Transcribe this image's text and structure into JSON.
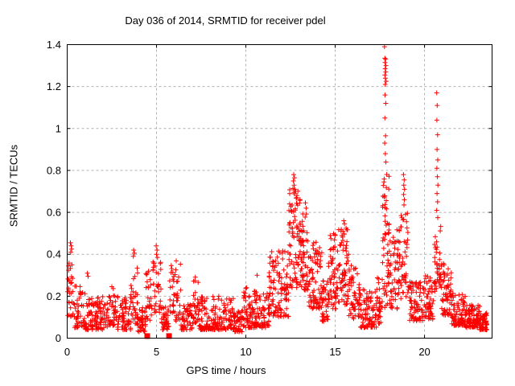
{
  "chart": {
    "title": "Day 036 of 2014, SRMTID for receiver pdel",
    "xlabel": "GPS time / hours",
    "ylabel": "SRMTID / TECUs"
  },
  "chart_data": {
    "type": "scatter",
    "title": "Day 036 of 2014, SRMTID for receiver pdel",
    "xlabel": "GPS time / hours",
    "ylabel": "SRMTID / TECUs",
    "xlim": [
      0,
      23.78
    ],
    "ylim": [
      0,
      1.4
    ],
    "xticks": [
      0,
      5,
      10,
      15,
      20
    ],
    "xtick_labels": [
      "0",
      "5",
      "10",
      "15",
      "20"
    ],
    "yticks": [
      0,
      0.2,
      0.4,
      0.6,
      0.8,
      1,
      1.2,
      1.4
    ],
    "ytick_labels": [
      "0",
      "0.2",
      "0.4",
      "0.6",
      "0.8",
      "1",
      "1.2",
      "1.4"
    ],
    "grid": true,
    "legend": "none",
    "marker": "plus",
    "marker_color": "#ff0000",
    "grid_color": "#b0b0b0",
    "axis_color": "#000000",
    "series_name": "SRMTID",
    "density_bands": [
      [
        0.02,
        0.35,
        0.1,
        0.4,
        28,
        1.2
      ],
      [
        0.35,
        1.0,
        0.05,
        0.25,
        48,
        1.8
      ],
      [
        1.0,
        2.3,
        0.04,
        0.2,
        110,
        1.8
      ],
      [
        2.3,
        2.7,
        0.06,
        0.26,
        32,
        1.5
      ],
      [
        2.7,
        3.55,
        0.04,
        0.2,
        70,
        1.8
      ],
      [
        3.55,
        3.95,
        0.07,
        0.36,
        36,
        1.6
      ],
      [
        3.95,
        4.4,
        0.03,
        0.15,
        40,
        1.6
      ],
      [
        4.4,
        4.8,
        0.08,
        0.32,
        28,
        1.4
      ],
      [
        4.8,
        5.25,
        0.12,
        0.38,
        32,
        1.4
      ],
      [
        5.25,
        5.7,
        0.04,
        0.15,
        40,
        1.6
      ],
      [
        5.7,
        6.0,
        0.12,
        0.36,
        22,
        1.4
      ],
      [
        6.0,
        6.35,
        0.08,
        0.37,
        26,
        1.5
      ],
      [
        6.35,
        7.0,
        0.04,
        0.16,
        55,
        1.7
      ],
      [
        7.0,
        7.35,
        0.07,
        0.3,
        28,
        1.5
      ],
      [
        7.35,
        9.3,
        0.04,
        0.2,
        160,
        1.9
      ],
      [
        9.3,
        9.8,
        0.03,
        0.13,
        45,
        1.5
      ],
      [
        9.8,
        10.4,
        0.05,
        0.26,
        55,
        1.7
      ],
      [
        10.4,
        11.3,
        0.05,
        0.23,
        80,
        1.7
      ],
      [
        11.3,
        12.4,
        0.1,
        0.42,
        110,
        1.4
      ],
      [
        12.4,
        13.05,
        0.24,
        0.72,
        85,
        1.2
      ],
      [
        13.05,
        13.5,
        0.22,
        0.6,
        55,
        1.3
      ],
      [
        13.5,
        14.25,
        0.14,
        0.46,
        80,
        1.4
      ],
      [
        14.25,
        14.6,
        0.08,
        0.28,
        35,
        1.5
      ],
      [
        14.6,
        15.1,
        0.14,
        0.5,
        55,
        1.3
      ],
      [
        15.1,
        15.75,
        0.16,
        0.54,
        70,
        1.3
      ],
      [
        15.75,
        16.35,
        0.09,
        0.36,
        55,
        1.5
      ],
      [
        16.35,
        17.3,
        0.05,
        0.24,
        82,
        1.7
      ],
      [
        17.3,
        17.65,
        0.07,
        0.3,
        32,
        1.5
      ],
      [
        17.65,
        18.05,
        0.14,
        0.8,
        60,
        1.2
      ],
      [
        18.05,
        18.5,
        0.14,
        0.52,
        45,
        1.4
      ],
      [
        18.5,
        19.1,
        0.18,
        0.62,
        58,
        1.3
      ],
      [
        19.1,
        20.0,
        0.08,
        0.27,
        80,
        1.6
      ],
      [
        20.0,
        20.55,
        0.09,
        0.3,
        50,
        1.5
      ],
      [
        20.55,
        20.95,
        0.22,
        0.55,
        42,
        1.3
      ],
      [
        20.95,
        21.5,
        0.11,
        0.36,
        55,
        1.5
      ],
      [
        21.5,
        22.3,
        0.06,
        0.22,
        85,
        1.7
      ],
      [
        22.3,
        23.1,
        0.05,
        0.16,
        95,
        1.6
      ],
      [
        23.1,
        23.5,
        0.04,
        0.12,
        55,
        1.6
      ]
    ],
    "spike_points": [
      [
        17.76,
        1.39
      ],
      [
        17.78,
        1.335
      ],
      [
        17.82,
        1.33
      ],
      [
        17.79,
        1.315
      ],
      [
        17.84,
        1.3
      ],
      [
        17.8,
        1.285
      ],
      [
        17.83,
        1.27
      ],
      [
        17.78,
        1.255
      ],
      [
        17.81,
        1.24
      ],
      [
        17.85,
        1.225
      ],
      [
        17.8,
        1.21
      ],
      [
        17.79,
        1.16
      ],
      [
        17.83,
        1.12
      ],
      [
        17.78,
        1.05
      ],
      [
        17.82,
        0.965
      ],
      [
        17.77,
        0.93
      ],
      [
        17.81,
        0.88
      ],
      [
        17.84,
        0.84
      ],
      [
        20.68,
        1.17
      ],
      [
        20.71,
        1.11
      ],
      [
        20.69,
        1.04
      ],
      [
        20.73,
        0.97
      ],
      [
        20.7,
        0.9
      ],
      [
        20.74,
        0.85
      ],
      [
        20.69,
        0.81
      ],
      [
        20.72,
        0.77
      ],
      [
        20.75,
        0.73
      ],
      [
        20.7,
        0.69
      ],
      [
        20.73,
        0.65
      ],
      [
        20.68,
        0.61
      ],
      [
        20.74,
        0.575
      ],
      [
        12.68,
        0.78
      ],
      [
        12.72,
        0.765
      ],
      [
        12.66,
        0.75
      ],
      [
        12.7,
        0.73
      ],
      [
        12.74,
        0.71
      ],
      [
        12.69,
        0.695
      ],
      [
        18.82,
        0.78
      ],
      [
        18.86,
        0.755
      ],
      [
        18.84,
        0.73
      ],
      [
        18.88,
        0.71
      ],
      [
        18.83,
        0.685
      ],
      [
        18.87,
        0.66
      ],
      [
        18.85,
        0.635
      ],
      [
        0.18,
        0.455
      ],
      [
        0.22,
        0.44
      ],
      [
        0.25,
        0.425
      ],
      [
        0.2,
        0.41
      ],
      [
        4.98,
        0.44
      ],
      [
        5.03,
        0.42
      ],
      [
        5.0,
        0.4
      ],
      [
        5.06,
        0.385
      ],
      [
        3.72,
        0.42
      ],
      [
        3.76,
        0.405
      ],
      [
        3.7,
        0.39
      ],
      [
        1.13,
        0.31
      ],
      [
        1.17,
        0.295
      ],
      [
        10.63,
        0.3
      ],
      [
        15.48,
        0.56
      ],
      [
        15.52,
        0.545
      ],
      [
        13.33,
        0.645
      ],
      [
        13.37,
        0.62
      ]
    ],
    "square_points": [
      [
        4.48,
        0.01
      ],
      [
        5.7,
        0.01
      ]
    ]
  }
}
